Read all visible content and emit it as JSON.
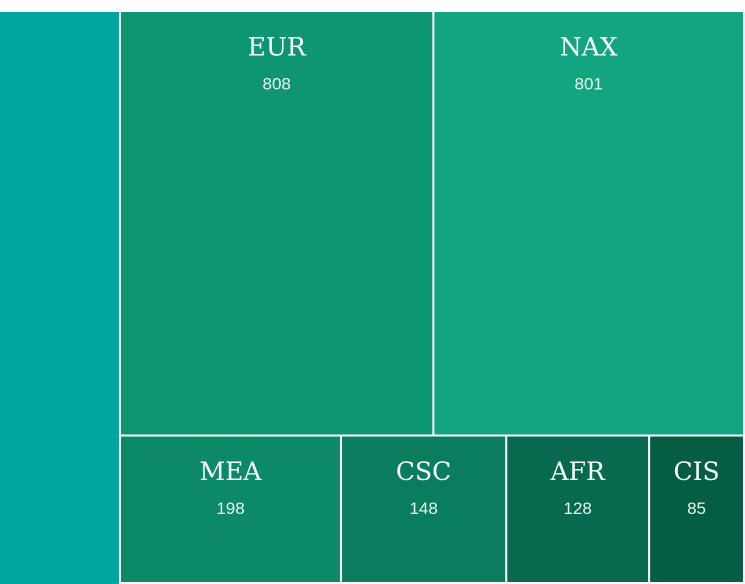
{
  "chart_data": {
    "type": "treemap",
    "categories": [
      "EUR",
      "NAX",
      "MEA",
      "CSC",
      "AFR",
      "CIS"
    ],
    "values": [
      808,
      801,
      198,
      148,
      128,
      85
    ],
    "colors": [
      "#0e9673",
      "#13a57f",
      "#0c8a67",
      "#0a7d5e",
      "#076a4f",
      "#055d44"
    ]
  }
}
